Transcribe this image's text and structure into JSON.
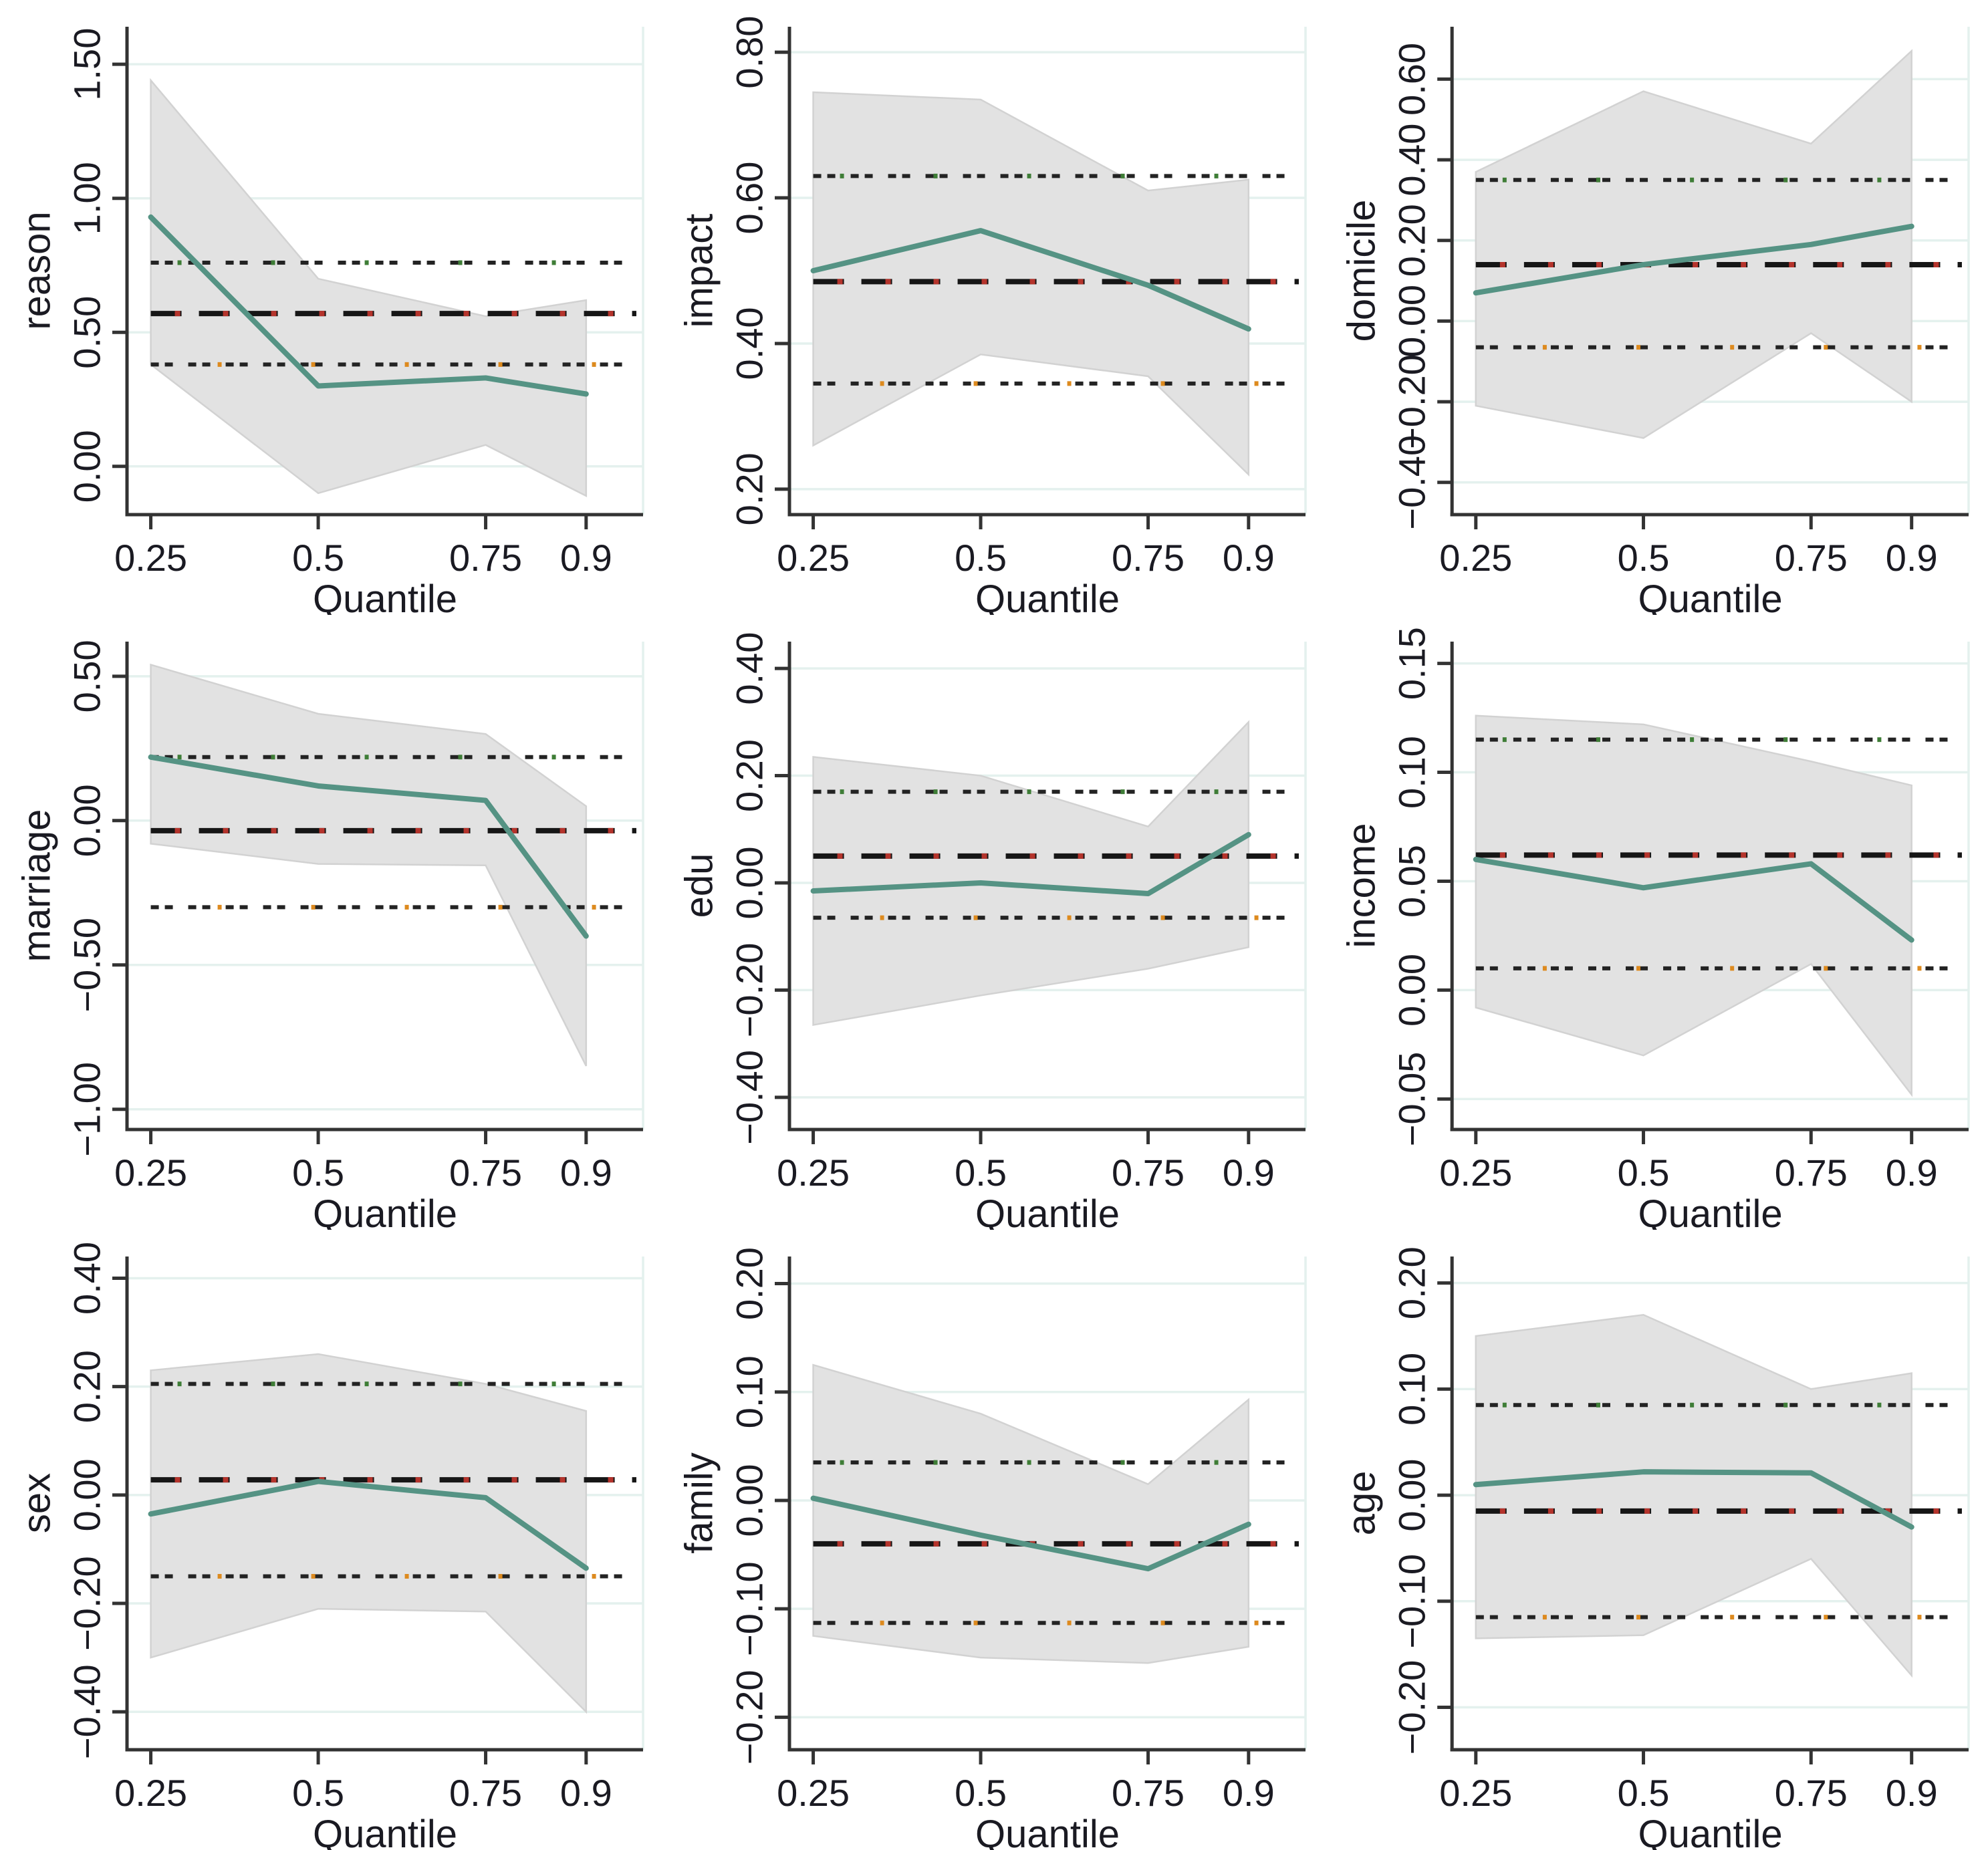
{
  "page": {
    "background": "#ffffff"
  },
  "colors": {
    "qr_line": "#559384",
    "band_fill": "#e2e2e2",
    "band_edge": "#d2d2d2",
    "ols_dash": "#161616",
    "ols_dash_accent": "#b5342c",
    "ci_dot": "#232323",
    "ci_upper_accent": "#3e7d36",
    "ci_lower_accent": "#dd8a1e",
    "grid": "#e4f1ee",
    "axis": "#333333",
    "text": "#1a1a22"
  },
  "axis": {
    "xlabel": "Quantile",
    "x_ticks": [
      0.25,
      0.5,
      0.75,
      0.9
    ],
    "x_tick_labels": [
      "0.25",
      "0.5",
      "0.75",
      "0.9"
    ]
  },
  "chart_data": [
    {
      "type": "line",
      "ylabel": "reason",
      "xlabel": "Quantile",
      "x": [
        0.25,
        0.5,
        0.75,
        0.9
      ],
      "series": [
        {
          "name": "quantile_regression_estimate",
          "values": [
            0.93,
            0.3,
            0.33,
            0.27
          ]
        },
        {
          "name": "qr_ci_band_upper",
          "values": [
            1.44,
            0.7,
            0.56,
            0.62
          ]
        },
        {
          "name": "qr_ci_band_lower",
          "values": [
            0.38,
            -0.1,
            0.08,
            -0.11
          ]
        }
      ],
      "ols": {
        "estimate": 0.57,
        "ci_upper": 0.76,
        "ci_lower": 0.38
      },
      "yticks": [
        0.0,
        0.5,
        1.0,
        1.5
      ],
      "ytick_labels": [
        "0.00",
        "0.50",
        "1.00",
        "1.50"
      ],
      "ylim": [
        -0.18,
        1.64
      ]
    },
    {
      "type": "line",
      "ylabel": "impact",
      "xlabel": "Quantile",
      "x": [
        0.25,
        0.5,
        0.75,
        0.9
      ],
      "series": [
        {
          "name": "quantile_regression_estimate",
          "values": [
            0.5,
            0.555,
            0.48,
            0.42
          ]
        },
        {
          "name": "qr_ci_band_upper",
          "values": [
            0.745,
            0.735,
            0.61,
            0.625
          ]
        },
        {
          "name": "qr_ci_band_lower",
          "values": [
            0.26,
            0.385,
            0.355,
            0.22
          ]
        }
      ],
      "ols": {
        "estimate": 0.485,
        "ci_upper": 0.63,
        "ci_lower": 0.345
      },
      "yticks": [
        0.2,
        0.4,
        0.6,
        0.8
      ],
      "ytick_labels": [
        "0.20",
        "0.40",
        "0.60",
        "0.80"
      ],
      "ylim": [
        0.165,
        0.835
      ]
    },
    {
      "type": "line",
      "ylabel": "domicile",
      "xlabel": "Quantile",
      "x": [
        0.25,
        0.5,
        0.75,
        0.9
      ],
      "series": [
        {
          "name": "quantile_regression_estimate",
          "values": [
            0.07,
            0.14,
            0.19,
            0.235
          ]
        },
        {
          "name": "qr_ci_band_upper",
          "values": [
            0.37,
            0.57,
            0.44,
            0.67
          ]
        },
        {
          "name": "qr_ci_band_lower",
          "values": [
            -0.21,
            -0.29,
            -0.03,
            -0.2
          ]
        }
      ],
      "ols": {
        "estimate": 0.14,
        "ci_upper": 0.35,
        "ci_lower": -0.065
      },
      "yticks": [
        -0.4,
        -0.2,
        0.0,
        0.2,
        0.4,
        0.6
      ],
      "ytick_labels": [
        "−0.40",
        "−0.20",
        "0.00",
        "0.20",
        "0.40",
        "0.60"
      ],
      "ylim": [
        -0.48,
        0.73
      ]
    },
    {
      "type": "line",
      "ylabel": "marriage",
      "xlabel": "Quantile",
      "x": [
        0.25,
        0.5,
        0.75,
        0.9
      ],
      "series": [
        {
          "name": "quantile_regression_estimate",
          "values": [
            0.22,
            0.12,
            0.07,
            -0.4
          ]
        },
        {
          "name": "qr_ci_band_upper",
          "values": [
            0.54,
            0.37,
            0.3,
            0.05
          ]
        },
        {
          "name": "qr_ci_band_lower",
          "values": [
            -0.08,
            -0.15,
            -0.155,
            -0.85
          ]
        }
      ],
      "ols": {
        "estimate": -0.035,
        "ci_upper": 0.22,
        "ci_lower": -0.3
      },
      "yticks": [
        -1.0,
        -0.5,
        0.0,
        0.5
      ],
      "ytick_labels": [
        "−1.00",
        "−0.50",
        "0.00",
        "0.50"
      ],
      "ylim": [
        -1.07,
        0.62
      ]
    },
    {
      "type": "line",
      "ylabel": "edu",
      "xlabel": "Quantile",
      "x": [
        0.25,
        0.5,
        0.75,
        0.9
      ],
      "series": [
        {
          "name": "quantile_regression_estimate",
          "values": [
            -0.015,
            0.0,
            -0.02,
            0.09
          ]
        },
        {
          "name": "qr_ci_band_upper",
          "values": [
            0.235,
            0.2,
            0.105,
            0.3
          ]
        },
        {
          "name": "qr_ci_band_lower",
          "values": [
            -0.265,
            -0.21,
            -0.16,
            -0.12
          ]
        }
      ],
      "ols": {
        "estimate": 0.05,
        "ci_upper": 0.17,
        "ci_lower": -0.065
      },
      "yticks": [
        -0.4,
        -0.2,
        0.0,
        0.2,
        0.4
      ],
      "ytick_labels": [
        "−0.40",
        "−0.20",
        "0.00",
        "0.20",
        "0.40"
      ],
      "ylim": [
        -0.46,
        0.45
      ]
    },
    {
      "type": "line",
      "ylabel": "income",
      "xlabel": "Quantile",
      "x": [
        0.25,
        0.5,
        0.75,
        0.9
      ],
      "series": [
        {
          "name": "quantile_regression_estimate",
          "values": [
            0.06,
            0.047,
            0.058,
            0.023
          ]
        },
        {
          "name": "qr_ci_band_upper",
          "values": [
            0.126,
            0.122,
            0.105,
            0.094
          ]
        },
        {
          "name": "qr_ci_band_lower",
          "values": [
            -0.008,
            -0.03,
            0.012,
            -0.048
          ]
        }
      ],
      "ols": {
        "estimate": 0.062,
        "ci_upper": 0.115,
        "ci_lower": 0.01
      },
      "yticks": [
        -0.05,
        0.0,
        0.05,
        0.1,
        0.15
      ],
      "ytick_labels": [
        "−0.05",
        "0.00",
        "0.05",
        "0.10",
        "0.15"
      ],
      "ylim": [
        -0.064,
        0.16
      ]
    },
    {
      "type": "line",
      "ylabel": "sex",
      "xlabel": "Quantile",
      "x": [
        0.25,
        0.5,
        0.75,
        0.9
      ],
      "series": [
        {
          "name": "quantile_regression_estimate",
          "values": [
            -0.035,
            0.025,
            -0.005,
            -0.135
          ]
        },
        {
          "name": "qr_ci_band_upper",
          "values": [
            0.23,
            0.26,
            0.205,
            0.155
          ]
        },
        {
          "name": "qr_ci_band_lower",
          "values": [
            -0.3,
            -0.21,
            -0.215,
            -0.4
          ]
        }
      ],
      "ols": {
        "estimate": 0.028,
        "ci_upper": 0.205,
        "ci_lower": -0.15
      },
      "yticks": [
        -0.4,
        -0.2,
        0.0,
        0.2,
        0.4
      ],
      "ytick_labels": [
        "−0.40",
        "−0.20",
        "0.00",
        "0.20",
        "0.40"
      ],
      "ylim": [
        -0.47,
        0.44
      ]
    },
    {
      "type": "line",
      "ylabel": "family",
      "xlabel": "Quantile",
      "x": [
        0.25,
        0.5,
        0.75,
        0.9
      ],
      "series": [
        {
          "name": "quantile_regression_estimate",
          "values": [
            0.002,
            -0.032,
            -0.063,
            -0.022
          ]
        },
        {
          "name": "qr_ci_band_upper",
          "values": [
            0.125,
            0.08,
            0.015,
            0.093
          ]
        },
        {
          "name": "qr_ci_band_lower",
          "values": [
            -0.125,
            -0.145,
            -0.15,
            -0.135
          ]
        }
      ],
      "ols": {
        "estimate": -0.04,
        "ci_upper": 0.035,
        "ci_lower": -0.113
      },
      "yticks": [
        -0.2,
        -0.1,
        0.0,
        0.1,
        0.2
      ],
      "ytick_labels": [
        "−0.20",
        "−0.10",
        "0.00",
        "0.10",
        "0.20"
      ],
      "ylim": [
        -0.23,
        0.225
      ]
    },
    {
      "type": "line",
      "ylabel": "age",
      "xlabel": "Quantile",
      "x": [
        0.25,
        0.5,
        0.75,
        0.9
      ],
      "series": [
        {
          "name": "quantile_regression_estimate",
          "values": [
            0.01,
            0.022,
            0.021,
            -0.03
          ]
        },
        {
          "name": "qr_ci_band_upper",
          "values": [
            0.15,
            0.17,
            0.1,
            0.115
          ]
        },
        {
          "name": "qr_ci_band_lower",
          "values": [
            -0.135,
            -0.132,
            -0.06,
            -0.17
          ]
        }
      ],
      "ols": {
        "estimate": -0.015,
        "ci_upper": 0.085,
        "ci_lower": -0.115
      },
      "yticks": [
        -0.2,
        -0.1,
        0.0,
        0.1,
        0.2
      ],
      "ytick_labels": [
        "−0.20",
        "−0.10",
        "0.00",
        "0.10",
        "0.20"
      ],
      "ylim": [
        -0.24,
        0.225
      ]
    }
  ]
}
